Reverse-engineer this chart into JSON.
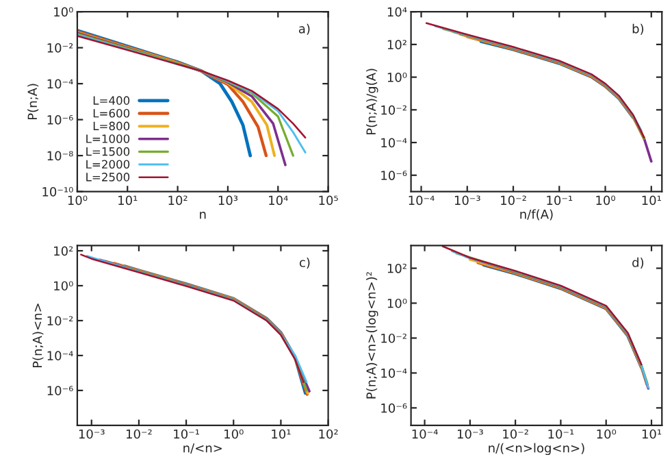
{
  "chart_data": [
    {
      "type": "line",
      "xlabel": "n",
      "ylabel": "P(n;A)",
      "log": "xy",
      "legend": "bottom left",
      "grid": false,
      "annotations": [
        "a)"
      ],
      "xlim": [
        1,
        100000
      ],
      "ylim": [
        1e-10,
        1
      ],
      "xticks": [
        {
          "value": 1,
          "label": "10⁰"
        },
        {
          "value": 10,
          "label": "10¹"
        },
        {
          "value": 100,
          "label": "10²"
        },
        {
          "value": 1000,
          "label": "10³"
        },
        {
          "value": 10000,
          "label": "10⁴"
        },
        {
          "value": 100000,
          "label": "10⁵"
        }
      ],
      "yticks": [
        {
          "value": 1e-10,
          "label": "10⁻¹⁰"
        },
        {
          "value": 1e-08,
          "label": "10⁻⁸"
        },
        {
          "value": 1e-06,
          "label": "10⁻⁶"
        },
        {
          "value": 0.0001,
          "label": "10⁻⁴"
        },
        {
          "value": 0.01,
          "label": "10⁻²"
        },
        {
          "value": 1,
          "label": "10⁰"
        }
      ],
      "series": [
        {
          "name": "L=400",
          "color": "#0072bd",
          "x": [
            1,
            10,
            100,
            300,
            700,
            1200,
            2000,
            2800
          ],
          "values": [
            0.09,
            0.012,
            0.0016,
            0.0005,
            0.0001,
            1e-05,
            5e-07,
            1e-08
          ]
        },
        {
          "name": "L=600",
          "color": "#d95319",
          "x": [
            1,
            10,
            100,
            300,
            1000,
            2000,
            4000,
            5800
          ],
          "values": [
            0.08,
            0.011,
            0.0015,
            0.0005,
            9e-05,
            1e-05,
            4e-07,
            1e-08
          ]
        },
        {
          "name": "L=800",
          "color": "#edb120",
          "x": [
            1,
            10,
            100,
            300,
            1000,
            3000,
            6000,
            8500
          ],
          "values": [
            0.07,
            0.01,
            0.0014,
            0.0005,
            0.00011,
            1e-05,
            5e-07,
            1e-08
          ]
        },
        {
          "name": "L=1000",
          "color": "#7e2f8e",
          "x": [
            1,
            10,
            100,
            300,
            1000,
            3000,
            8000,
            14000
          ],
          "values": [
            0.065,
            0.0095,
            0.0013,
            0.0005,
            0.00012,
            2e-05,
            6e-07,
            3e-09
          ]
        },
        {
          "name": "L=1500",
          "color": "#77ac30",
          "x": [
            1,
            10,
            100,
            300,
            1000,
            3000,
            10000,
            20000
          ],
          "values": [
            0.058,
            0.009,
            0.0013,
            0.0005,
            0.00013,
            3e-05,
            1.5e-06,
            1e-08
          ]
        },
        {
          "name": "L=2000",
          "color": "#4dbeee",
          "x": [
            1,
            10,
            100,
            300,
            1000,
            3000,
            10000,
            20000,
            35000
          ],
          "values": [
            0.052,
            0.008,
            0.0012,
            0.0005,
            0.00014,
            3.5e-05,
            3e-06,
            2e-07,
            1.5e-08
          ]
        },
        {
          "name": "L=2500",
          "color": "#a2142f",
          "x": [
            1,
            10,
            100,
            300,
            1000,
            3000,
            10000,
            20000,
            35000
          ],
          "values": [
            0.045,
            0.0075,
            0.0012,
            0.0005,
            0.00015,
            4e-05,
            4e-06,
            6e-07,
            1e-07
          ]
        }
      ]
    },
    {
      "type": "line",
      "xlabel": "n/f(A)",
      "ylabel": "P(n;A)/g(A)",
      "log": "xy",
      "grid": false,
      "annotations": [
        "b)"
      ],
      "xlim": [
        6e-05,
        17
      ],
      "ylim": [
        1e-07,
        10000
      ],
      "xticks": [
        {
          "value": 0.0001,
          "label": "10⁻⁴"
        },
        {
          "value": 0.001,
          "label": "10⁻³"
        },
        {
          "value": 0.01,
          "label": "10⁻²"
        },
        {
          "value": 0.1,
          "label": "10⁻¹"
        },
        {
          "value": 1,
          "label": "10⁰"
        },
        {
          "value": 10,
          "label": "10¹"
        }
      ],
      "yticks": [
        {
          "value": 1e-06,
          "label": "10⁻⁶"
        },
        {
          "value": 0.0001,
          "label": "10⁻⁴"
        },
        {
          "value": 0.01,
          "label": "10⁻²"
        },
        {
          "value": 1,
          "label": "10⁰"
        },
        {
          "value": 100,
          "label": "10²"
        },
        {
          "value": 10000,
          "label": "10⁴"
        }
      ],
      "series": [
        {
          "color": "#0072bd",
          "x": [
            0.002,
            0.01,
            0.1,
            0.5,
            1,
            2,
            4
          ],
          "values": [
            154,
            49,
            7,
            1.05,
            0.28,
            0.049,
            0.0035
          ]
        },
        {
          "color": "#d95319",
          "x": [
            0.001,
            0.01,
            0.1,
            0.5,
            1,
            2,
            4,
            6
          ],
          "values": [
            300,
            52,
            7.5,
            1.1,
            0.3,
            0.052,
            0.0038,
            0.00045
          ]
        },
        {
          "color": "#edb120",
          "x": [
            0.0007,
            0.01,
            0.1,
            0.5,
            1,
            2,
            4,
            7
          ],
          "values": [
            420,
            56,
            8,
            1.2,
            0.32,
            0.056,
            0.004,
            0.00016
          ]
        },
        {
          "color": "#7e2f8e",
          "x": [
            0.0005,
            0.01,
            0.1,
            0.5,
            1,
            2,
            4,
            7,
            10
          ],
          "values": [
            600,
            60,
            8.5,
            1.3,
            0.34,
            0.06,
            0.0043,
            0.00017,
            7e-06
          ]
        },
        {
          "color": "#77ac30",
          "x": [
            0.0003,
            0.01,
            0.1,
            0.5,
            1,
            2,
            4,
            7
          ],
          "values": [
            900,
            63,
            9,
            1.35,
            0.36,
            0.063,
            0.0045,
            0.00018
          ]
        },
        {
          "color": "#4dbeee",
          "x": [
            0.0002,
            0.001,
            0.01,
            0.1,
            0.5,
            1,
            2,
            4,
            6
          ],
          "values": [
            1330,
            380,
            67,
            9.5,
            1.4,
            0.38,
            0.067,
            0.0048,
            0.00057
          ]
        },
        {
          "color": "#a2142f",
          "x": [
            0.00013,
            0.001,
            0.01,
            0.1,
            0.5,
            1,
            2,
            4,
            7
          ],
          "values": [
            2000,
            400,
            70,
            10,
            1.5,
            0.4,
            0.07,
            0.005,
            0.0002
          ]
        }
      ]
    },
    {
      "type": "line",
      "xlabel": "n/<n>",
      "ylabel": "P(n;A)<n>",
      "log": "xy",
      "grid": false,
      "annotations": [
        "c)"
      ],
      "xlim": [
        0.0005,
        100
      ],
      "ylim": [
        1e-08,
        200
      ],
      "xticks": [
        {
          "value": 0.001,
          "label": "10⁻³"
        },
        {
          "value": 0.01,
          "label": "10⁻²"
        },
        {
          "value": 0.1,
          "label": "10⁻¹"
        },
        {
          "value": 1,
          "label": "10⁰"
        },
        {
          "value": 10,
          "label": "10¹"
        },
        {
          "value": 100,
          "label": "10²"
        }
      ],
      "yticks": [
        {
          "value": 1e-06,
          "label": "10⁻⁶"
        },
        {
          "value": 0.0001,
          "label": "10⁻⁴"
        },
        {
          "value": 0.01,
          "label": "10⁻²"
        },
        {
          "value": 1,
          "label": "10⁰"
        },
        {
          "value": 100,
          "label": "10²"
        }
      ],
      "series": [
        {
          "color": "#0072bd",
          "x": [
            0.005,
            0.01,
            0.1,
            1,
            5,
            10,
            20,
            33
          ],
          "values": [
            13,
            7.5,
            1.24,
            0.18,
            0.013,
            0.002,
            7.8e-05,
            7e-07
          ]
        },
        {
          "color": "#d95319",
          "x": [
            0.003,
            0.01,
            0.1,
            1,
            5,
            10,
            20,
            36
          ],
          "values": [
            19,
            7.2,
            1.2,
            0.175,
            0.0125,
            0.0019,
            7.5e-05,
            6e-07
          ]
        },
        {
          "color": "#edb120",
          "x": [
            0.002,
            0.01,
            0.1,
            1,
            5,
            10,
            20,
            37
          ],
          "values": [
            25,
            7,
            1.14,
            0.17,
            0.012,
            0.0018,
            7.2e-05,
            7e-07
          ]
        },
        {
          "color": "#7e2f8e",
          "x": [
            0.0015,
            0.01,
            0.1,
            1,
            5,
            10,
            20,
            40
          ],
          "values": [
            30,
            6.7,
            1.1,
            0.16,
            0.0115,
            0.0017,
            6.9e-05,
            9e-07
          ]
        },
        {
          "color": "#77ac30",
          "x": [
            0.001,
            0.01,
            0.1,
            1,
            5,
            10,
            20,
            35
          ],
          "values": [
            38,
            6.4,
            1.05,
            0.155,
            0.011,
            0.0016,
            6.6e-05,
            1e-06
          ]
        },
        {
          "color": "#4dbeee",
          "x": [
            0.0008,
            0.01,
            0.1,
            1,
            5,
            10,
            20,
            35
          ],
          "values": [
            50,
            6.1,
            1.0,
            0.147,
            0.0105,
            0.0016,
            0.0001,
            3e-06
          ]
        },
        {
          "color": "#a2142f",
          "x": [
            0.0006,
            0.001,
            0.01,
            0.1,
            1,
            5,
            10,
            20,
            30
          ],
          "values": [
            60,
            35,
            5.8,
            0.95,
            0.14,
            0.01,
            0.0015,
            6e-05,
            3e-06
          ]
        }
      ]
    },
    {
      "type": "line",
      "xlabel": "n/(<n>log<n>)",
      "ylabel": "P(n;A)<n>(log<n>)²",
      "log": "xy",
      "grid": false,
      "annotations": [
        "d)"
      ],
      "xlim": [
        5e-05,
        17
      ],
      "ylim": [
        1e-07,
        2000
      ],
      "xticks": [
        {
          "value": 0.0001,
          "label": "10⁻⁴"
        },
        {
          "value": 0.001,
          "label": "10⁻³"
        },
        {
          "value": 0.01,
          "label": "10⁻²"
        },
        {
          "value": 0.1,
          "label": "10⁻¹"
        },
        {
          "value": 1,
          "label": "10⁰"
        },
        {
          "value": 10,
          "label": "10¹"
        }
      ],
      "yticks": [
        {
          "value": 1e-06,
          "label": "10⁻⁶"
        },
        {
          "value": 0.0001,
          "label": "10⁻⁴"
        },
        {
          "value": 0.01,
          "label": "10⁻²"
        },
        {
          "value": 1,
          "label": "10⁰"
        },
        {
          "value": 100,
          "label": "10²"
        }
      ],
      "series": [
        {
          "color": "#0072bd",
          "x": [
            0.002,
            0.01,
            0.1,
            1,
            3,
            6
          ],
          "values": [
            154,
            49,
            7,
            0.49,
            0.014,
            0.00021
          ]
        },
        {
          "color": "#d95319",
          "x": [
            0.0015,
            0.01,
            0.1,
            1,
            3,
            6,
            8
          ],
          "values": [
            210,
            52,
            7.5,
            0.52,
            0.015,
            0.00022,
            2.2e-05
          ]
        },
        {
          "color": "#edb120",
          "x": [
            0.001,
            0.01,
            0.1,
            1,
            3,
            6,
            8
          ],
          "values": [
            320,
            56,
            8,
            0.56,
            0.016,
            0.00024,
            2.4e-05
          ]
        },
        {
          "color": "#7e2f8e",
          "x": [
            0.0008,
            0.01,
            0.1,
            1,
            3,
            6,
            8.5
          ],
          "values": [
            470,
            60,
            8.5,
            0.6,
            0.017,
            0.00026,
            1.3e-05
          ]
        },
        {
          "color": "#77ac30",
          "x": [
            0.0005,
            0.01,
            0.1,
            1,
            3,
            6,
            8
          ],
          "values": [
            720,
            63,
            9,
            0.63,
            0.018,
            0.00027,
            2.7e-05
          ]
        },
        {
          "color": "#4dbeee",
          "x": [
            0.0004,
            0.001,
            0.01,
            0.1,
            1,
            3,
            6,
            8.5
          ],
          "values": [
            950,
            380,
            67,
            9.5,
            0.67,
            0.019,
            0.00029,
            1.4e-05
          ]
        },
        {
          "color": "#a2142f",
          "x": [
            0.00025,
            0.001,
            0.01,
            0.1,
            1,
            3,
            6
          ],
          "values": [
            1800,
            400,
            70,
            10,
            0.7,
            0.02,
            0.0003
          ]
        }
      ]
    }
  ]
}
